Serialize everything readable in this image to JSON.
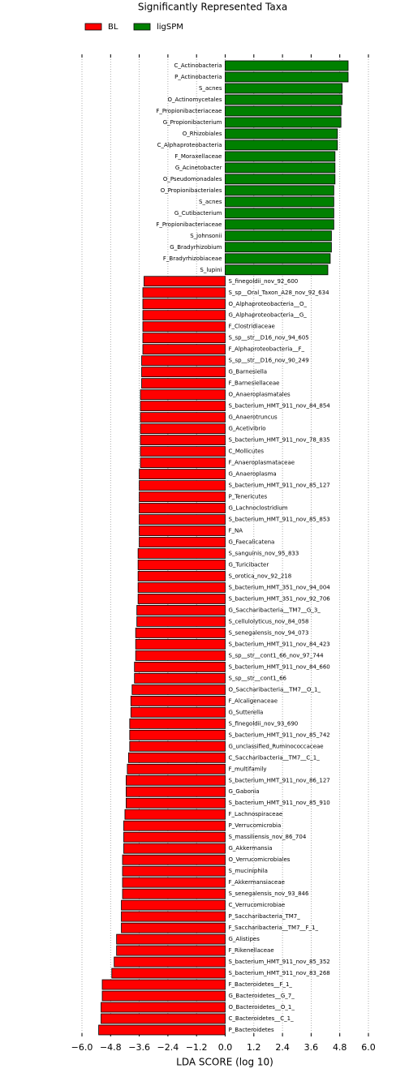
{
  "chart_data": {
    "type": "barh",
    "title": "Significantly Represented Taxa",
    "xlabel": "LDA SCORE (log 10)",
    "categories": [
      "C_Actinobacteria",
      "P_Actinobacteria",
      "S_acnes",
      "O_Actinomycetales",
      "F_Propionibacteriaceae",
      "G_Propionibacterium",
      "O_Rhizobiales",
      "C_Alphaproteobacteria",
      "F_Moraxellaceae",
      "G_Acinetobacter",
      "O_Pseudomonadales",
      "O_Propionibacteriales",
      "S_acnes",
      "G_Cutibacterium",
      "F_Propionibacteriaceae",
      "S_johnsonii",
      "G_Bradyrhizobium",
      "F_Bradyrhizobiaceae",
      "S_lupini",
      "S_finegoldii_nov_92_600",
      "S_sp__Oral_Taxon_A28_nov_92_634",
      "O_Alphaproteobacteria__O_",
      "G_Alphaproteobacteria__G_",
      "F_Clostridiaceae",
      "S_sp__str__D16_nov_94_605",
      "F_Alphaproteobacteria__F_",
      "S_sp__str__D16_nov_90_249",
      "G_Barnesiella",
      "F_Barnesiellaceae",
      "O_Anaeroplasmatales",
      "S_bacterium_HMT_911_nov_84_854",
      "G_Anaerotruncus",
      "G_Acetivibrio",
      "S_bacterium_HMT_911_nov_78_835",
      "C_Mollicutes",
      "F_Anaeroplasmataceae",
      "G_Anaeroplasma",
      "S_bacterium_HMT_911_nov_85_127",
      "P_Tenericutes",
      "G_Lachnoclostridium",
      "S_bacterium_HMT_911_nov_85_853",
      "F_NA",
      "G_Faecalicatena",
      "S_sanguinis_nov_95_833",
      "G_Turicibacter",
      "S_orotica_nov_92_218",
      "S_bacterium_HMT_351_nov_94_004",
      "S_bacterium_HMT_351_nov_92_706",
      "G_Saccharibacteria__TM7__G_3_",
      "S_cellulolyticus_nov_84_058",
      "S_senegalensis_nov_94_073",
      "S_bacterium_HMT_911_nov_84_423",
      "S_sp__str__cont1_66_nov_97_744",
      "S_bacterium_HMT_911_nov_84_660",
      "S_sp__str__cont1_66",
      "O_Saccharibacteria__TM7__O_1_",
      "F_Alcaligenaceae",
      "G_Sutterella",
      "S_finegoldii_nov_93_690",
      "S_bacterium_HMT_911_nov_85_742",
      "G_unclassified_Ruminococcaceae",
      "C_Saccharibacteria__TM7__C_1_",
      "F_multifamily",
      "S_bacterium_HMT_911_nov_86_127",
      "G_Gabonia",
      "S_bacterium_HMT_911_nov_85_910",
      "F_Lachnospiraceae",
      "P_Verrucomicrobia",
      "S_massiliensis_nov_86_704",
      "G_Akkermansia",
      "O_Verrucomicrobiales",
      "S_muciniphila",
      "F_Akkermansiaceae",
      "S_senegalensis_nov_93_846",
      "C_Verrucomicrobiae",
      "P_Saccharibacteria_TM7_",
      "F_Saccharibacteria__TM7__F_1_",
      "G_Alistipes",
      "F_Rikenellaceae",
      "S_bacterium_HMT_911_nov_85_352",
      "S_bacterium_HMT_911_nov_83_268",
      "F_Bacteroidetes__F_1_",
      "G_Bacteroidetes__G_7_",
      "O_Bacteroidetes__O_1_",
      "C_Bacteroidetes__C_1_",
      "P_Bacteroidetes"
    ],
    "series": [
      {
        "name": "BL",
        "color": "#ff0000",
        "values": [
          null,
          null,
          null,
          null,
          null,
          null,
          null,
          null,
          null,
          null,
          null,
          null,
          null,
          null,
          null,
          null,
          null,
          null,
          null,
          -3.4,
          -3.45,
          -3.45,
          -3.45,
          -3.45,
          -3.45,
          -3.45,
          -3.5,
          -3.5,
          -3.5,
          -3.55,
          -3.55,
          -3.55,
          -3.55,
          -3.55,
          -3.55,
          -3.55,
          -3.6,
          -3.6,
          -3.6,
          -3.6,
          -3.6,
          -3.6,
          -3.6,
          -3.65,
          -3.65,
          -3.65,
          -3.65,
          -3.65,
          -3.7,
          -3.7,
          -3.75,
          -3.75,
          -3.75,
          -3.8,
          -3.8,
          -3.9,
          -3.95,
          -3.95,
          -4.0,
          -4.0,
          -4.0,
          -4.05,
          -4.1,
          -4.15,
          -4.15,
          -4.15,
          -4.2,
          -4.25,
          -4.25,
          -4.25,
          -4.3,
          -4.3,
          -4.3,
          -4.3,
          -4.35,
          -4.35,
          -4.35,
          -4.55,
          -4.55,
          -4.65,
          -4.75,
          -5.15,
          -5.15,
          -5.2,
          -5.2,
          -5.3
        ]
      },
      {
        "name": "ligSPM",
        "color": "#008000",
        "values": [
          5.15,
          5.15,
          4.9,
          4.9,
          4.85,
          4.85,
          4.7,
          4.7,
          4.6,
          4.6,
          4.6,
          4.55,
          4.55,
          4.55,
          4.55,
          4.45,
          4.45,
          4.4,
          4.3,
          null,
          null,
          null,
          null,
          null,
          null,
          null,
          null,
          null,
          null,
          null,
          null,
          null,
          null,
          null,
          null,
          null,
          null,
          null,
          null,
          null,
          null,
          null,
          null,
          null,
          null,
          null,
          null,
          null,
          null,
          null,
          null,
          null,
          null,
          null,
          null,
          null,
          null,
          null,
          null,
          null,
          null,
          null,
          null,
          null,
          null,
          null,
          null,
          null,
          null,
          null,
          null,
          null,
          null,
          null,
          null,
          null,
          null,
          null,
          null,
          null,
          null,
          null,
          null,
          null,
          null,
          null
        ]
      }
    ],
    "xlim": [
      -6.0,
      6.0
    ],
    "xticks": [
      {
        "value": -6.0,
        "label": "−6.0"
      },
      {
        "value": -4.8,
        "label": "−4.8"
      },
      {
        "value": -3.6,
        "label": "−3.6"
      },
      {
        "value": -2.4,
        "label": "−2.4"
      },
      {
        "value": -1.2,
        "label": "−1.2"
      },
      {
        "value": 0,
        "label": "0.0"
      },
      1.2,
      2.4,
      3.6,
      4.8,
      {
        "value": 6.0,
        "label": "6.0"
      }
    ],
    "grid": true
  }
}
